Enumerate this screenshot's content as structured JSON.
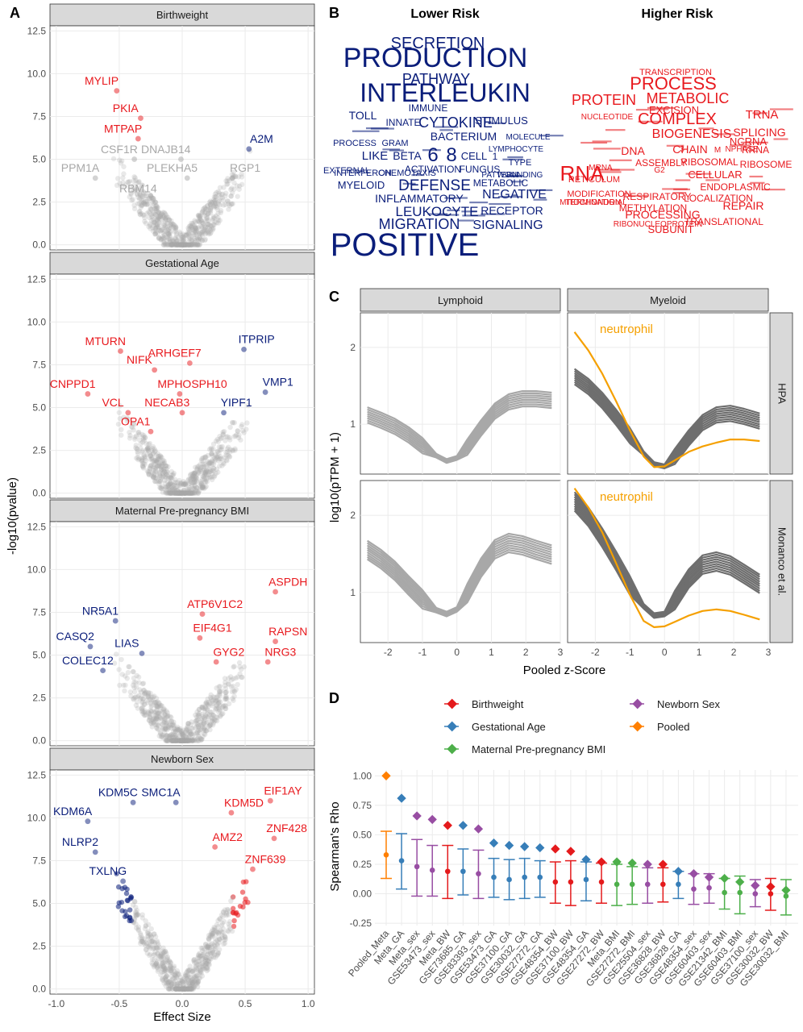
{
  "panels": {
    "a": "A",
    "b": "B",
    "c": "C",
    "d": "D"
  },
  "colors": {
    "red": "#e8191e",
    "blue": "#0a1d7a",
    "grey": "#a8a8a8",
    "orange": "#f5a000",
    "darkgrey": "#6e6e6e",
    "legend_birthweight": "#e41a1c",
    "legend_ga": "#377eb8",
    "legend_bmi": "#4daf4a",
    "legend_sex": "#984ea3",
    "legend_pooled": "#ff7f00"
  },
  "chart_data": [
    {
      "id": "A",
      "type": "scatter",
      "xlabel": "Effect Size",
      "ylabel": "-log10(pvalue)",
      "xlim": [
        -1.05,
        1.05
      ],
      "ylim": [
        -0.3,
        12.8
      ],
      "x_ticks": [
        "-1.0",
        "-0.5",
        "0.0",
        "0.5",
        "1.0"
      ],
      "y_ticks": [
        "0.0",
        "2.5",
        "5.0",
        "7.5",
        "10.0",
        "12.5"
      ],
      "grid": true,
      "facets": [
        {
          "title": "Birthweight",
          "labels": [
            {
              "text": "MYLIP",
              "x": -0.64,
              "y": 9.6,
              "color": "red"
            },
            {
              "text": "PKIA",
              "x": -0.45,
              "y": 8.0,
              "color": "red"
            },
            {
              "text": "MTPAP",
              "x": -0.47,
              "y": 6.8,
              "color": "red"
            },
            {
              "text": "CSF1R",
              "x": -0.5,
              "y": 5.6,
              "color": "grey"
            },
            {
              "text": "DNAJB14",
              "x": -0.13,
              "y": 5.6,
              "color": "grey"
            },
            {
              "text": "PPM1A",
              "x": -0.81,
              "y": 4.5,
              "color": "grey"
            },
            {
              "text": "PLEKHA5",
              "x": -0.08,
              "y": 4.5,
              "color": "grey"
            },
            {
              "text": "RBM14",
              "x": -0.35,
              "y": 3.3,
              "color": "grey"
            },
            {
              "text": "A2M",
              "x": 0.63,
              "y": 6.2,
              "color": "blue"
            },
            {
              "text": "RGP1",
              "x": 0.5,
              "y": 4.5,
              "color": "grey"
            }
          ]
        },
        {
          "title": "Gestational Age",
          "labels": [
            {
              "text": "MTURN",
              "x": -0.61,
              "y": 8.9,
              "color": "red"
            },
            {
              "text": "NIFK",
              "x": -0.34,
              "y": 7.8,
              "color": "red"
            },
            {
              "text": "ARHGEF7",
              "x": -0.06,
              "y": 8.2,
              "color": "red"
            },
            {
              "text": "CNPPD1",
              "x": -0.87,
              "y": 6.4,
              "color": "red"
            },
            {
              "text": "MPHOSPH10",
              "x": 0.08,
              "y": 6.4,
              "color": "red"
            },
            {
              "text": "VCL",
              "x": -0.55,
              "y": 5.3,
              "color": "red"
            },
            {
              "text": "NECAB3",
              "x": -0.12,
              "y": 5.3,
              "color": "red"
            },
            {
              "text": "OPA1",
              "x": -0.37,
              "y": 4.2,
              "color": "red"
            },
            {
              "text": "ITPRIP",
              "x": 0.59,
              "y": 9.0,
              "color": "blue"
            },
            {
              "text": "VMP1",
              "x": 0.76,
              "y": 6.5,
              "color": "blue"
            },
            {
              "text": "YIPF1",
              "x": 0.43,
              "y": 5.3,
              "color": "blue"
            }
          ]
        },
        {
          "title": "Maternal Pre-pregnancy BMI",
          "labels": [
            {
              "text": "NR5A1",
              "x": -0.65,
              "y": 7.6,
              "color": "blue"
            },
            {
              "text": "CASQ2",
              "x": -0.85,
              "y": 6.1,
              "color": "blue"
            },
            {
              "text": "LIAS",
              "x": -0.44,
              "y": 5.7,
              "color": "blue"
            },
            {
              "text": "COLEC12",
              "x": -0.75,
              "y": 4.7,
              "color": "blue"
            },
            {
              "text": "ASPDH",
              "x": 0.84,
              "y": 9.3,
              "color": "red"
            },
            {
              "text": "ATP6V1C2",
              "x": 0.26,
              "y": 8.0,
              "color": "red"
            },
            {
              "text": "RAPSN",
              "x": 0.84,
              "y": 6.4,
              "color": "red"
            },
            {
              "text": "EIF4G1",
              "x": 0.24,
              "y": 6.6,
              "color": "red"
            },
            {
              "text": "GYG2",
              "x": 0.37,
              "y": 5.2,
              "color": "red"
            },
            {
              "text": "NRG3",
              "x": 0.78,
              "y": 5.2,
              "color": "red"
            }
          ]
        },
        {
          "title": "Newborn Sex",
          "labels": [
            {
              "text": "KDM5C",
              "x": -0.51,
              "y": 11.5,
              "color": "blue"
            },
            {
              "text": "SMC1A",
              "x": -0.17,
              "y": 11.5,
              "color": "blue"
            },
            {
              "text": "KDM6A",
              "x": -0.87,
              "y": 10.4,
              "color": "blue"
            },
            {
              "text": "NLRP2",
              "x": -0.81,
              "y": 8.6,
              "color": "blue"
            },
            {
              "text": "TXLNG",
              "x": -0.59,
              "y": 6.9,
              "color": "blue"
            },
            {
              "text": "EIF1AY",
              "x": 0.8,
              "y": 11.6,
              "color": "red"
            },
            {
              "text": "KDM5D",
              "x": 0.49,
              "y": 10.9,
              "color": "red"
            },
            {
              "text": "AMZ2",
              "x": 0.36,
              "y": 8.9,
              "color": "red"
            },
            {
              "text": "ZNF428",
              "x": 0.83,
              "y": 9.4,
              "color": "red"
            },
            {
              "text": "ZNF639",
              "x": 0.66,
              "y": 7.6,
              "color": "red"
            }
          ]
        }
      ]
    },
    {
      "id": "B",
      "type": "wordcloud",
      "groups": [
        {
          "title": "Lower Risk",
          "color": "blue",
          "words": [
            "SECRETION",
            "PRODUCTION",
            "PATHWAY",
            "INTERLEUKIN",
            "TOLL",
            "IMMUNE",
            "CYTOKINE",
            "STIMULUS",
            "INNATE",
            "BACTERIUM",
            "PROCESS",
            "GRAM",
            "LIKE",
            "BETA",
            "6",
            "8",
            "CELL",
            "1",
            "INTERFERON",
            "ACTIVATION",
            "FUNGUS",
            "TYPE",
            "MYELOID",
            "DEFENSE",
            "NEGATIVE",
            "INFLAMMATORY",
            "METABOLIC",
            "LEUKOCYTE",
            "RECEPTOR",
            "MIGRATION",
            "SIGNALING",
            "POSITIVE",
            "CHEMOTAXIS",
            "EXTERNAL",
            "LYMPHOCYTE",
            "MOLECULE",
            "WOUNDING",
            "PATTERN"
          ]
        },
        {
          "title": "Higher Risk",
          "color": "red",
          "words": [
            "TRANSCRIPTION",
            "PROCESS",
            "METABOLIC",
            "PROTEIN",
            "NUCLEOTIDE",
            "EXCISION",
            "TRNA",
            "COMPLEX",
            "BIOGENESIS",
            "SPLICING",
            "CHAIN",
            "NCRNA",
            "DNA",
            "RNA",
            "RRNA",
            "RETICULUM",
            "RIBOSOME",
            "ASSEMBLY",
            "CELLULAR",
            "RIBOSOMAL",
            "ENDOPLASMIC",
            "MODIFICATION",
            "RESPIRATORY",
            "LOCALIZATION",
            "MITOCHONDRIAL",
            "METHYLATION",
            "TERMINATION",
            "PROCESSING",
            "TRANSLATIONAL",
            "RIBONUCLEOPROTEIN",
            "SUBUNIT",
            "REPAIR",
            "MRNA",
            "G2",
            "3",
            "M",
            "NPHASE"
          ]
        }
      ]
    },
    {
      "id": "C",
      "type": "line",
      "xlabel": "Pooled z-Score",
      "ylabel": "log10(pTPM + 1)",
      "xlim": [
        -2.8,
        3.0
      ],
      "ylim": [
        0.35,
        2.45
      ],
      "x_ticks": [
        "-2",
        "-1",
        "0",
        "1",
        "2",
        "3"
      ],
      "y_ticks": [
        "1",
        "2"
      ],
      "columns": [
        "Lymphoid",
        "Myeloid"
      ],
      "rows": [
        "HPA",
        "Monanco et al."
      ],
      "highlight_label": "neutrophil",
      "x": [
        -2.6,
        -2.2,
        -1.8,
        -1.4,
        -1.0,
        -0.6,
        -0.3,
        0.0,
        0.3,
        0.7,
        1.1,
        1.5,
        1.9,
        2.3,
        2.75
      ],
      "facets": [
        {
          "col": 0,
          "row": 0,
          "series": [
            {
              "values": [
                1.12,
                1.05,
                0.97,
                0.86,
                0.72,
                0.59,
                0.52,
                0.56,
                0.7,
                0.95,
                1.17,
                1.29,
                1.33,
                1.33,
                1.31
              ],
              "spread": 0.1,
              "n": 8,
              "color": "grey"
            }
          ]
        },
        {
          "col": 1,
          "row": 0,
          "series": [
            {
              "values": [
                1.62,
                1.49,
                1.31,
                1.09,
                0.85,
                0.62,
                0.48,
                0.45,
                0.58,
                0.82,
                1.02,
                1.12,
                1.14,
                1.1,
                1.04
              ],
              "spread": 0.1,
              "n": 8,
              "color": "darkgrey"
            },
            {
              "values": [
                2.2,
                1.96,
                1.66,
                1.3,
                0.92,
                0.58,
                0.44,
                0.45,
                0.53,
                0.64,
                0.71,
                0.76,
                0.8,
                0.8,
                0.78
              ],
              "spread": 0,
              "n": 1,
              "color": "orange"
            }
          ]
        },
        {
          "col": 0,
          "row": 1,
          "series": [
            {
              "values": [
                1.55,
                1.43,
                1.28,
                1.09,
                0.91,
                0.77,
                0.72,
                0.78,
                0.99,
                1.32,
                1.56,
                1.64,
                1.61,
                1.55,
                1.49
              ],
              "spread": 0.12,
              "n": 9,
              "color": "grey"
            }
          ]
        },
        {
          "col": 1,
          "row": 1,
          "series": [
            {
              "values": [
                2.18,
                1.98,
                1.71,
                1.41,
                1.09,
                0.82,
                0.7,
                0.72,
                0.9,
                1.18,
                1.36,
                1.4,
                1.35,
                1.24,
                1.11
              ],
              "spread": 0.12,
              "n": 9,
              "color": "darkgrey"
            },
            {
              "values": [
                2.35,
                2.1,
                1.78,
                1.38,
                0.97,
                0.63,
                0.55,
                0.56,
                0.62,
                0.7,
                0.76,
                0.78,
                0.76,
                0.71,
                0.65
              ],
              "spread": 0,
              "n": 1,
              "color": "orange"
            }
          ]
        }
      ]
    },
    {
      "id": "D",
      "type": "scatter",
      "ylabel": "Spearman's Rho",
      "ylim": [
        -0.27,
        1.05
      ],
      "y_ticks": [
        "-0.25",
        "0.00",
        "0.25",
        "0.50",
        "0.75",
        "1.00"
      ],
      "legend": [
        {
          "name": "Birthweight",
          "color": "legend_birthweight"
        },
        {
          "name": "Gestational Age",
          "color": "legend_ga"
        },
        {
          "name": "Maternal Pre-pregnancy BMI",
          "color": "legend_bmi"
        },
        {
          "name": "Newborn Sex",
          "color": "legend_sex"
        },
        {
          "name": "Pooled",
          "color": "legend_pooled"
        }
      ],
      "categories": [
        "Pooled_Meta",
        "Meta_GA",
        "Meta_sex",
        "GSE53473_sex",
        "Meta_BW",
        "GSE73685_GA",
        "GSE83393_sex",
        "GSE53473_GA",
        "GSE37100_GA",
        "GSE30032_GA",
        "GSE27272_GA",
        "GSE48354_BW",
        "GSE37100_BW",
        "GSE48354_GA",
        "GSE27272_BW",
        "Meta_BMI",
        "GSE27272_BMI",
        "GSE25504_sex",
        "GSE36828_BW",
        "GSE36828_GA",
        "GSE48354_sex",
        "GSE60403_sex",
        "GSE21342_BMI",
        "GSE60403_BMI",
        "GSE37100_sex",
        "GSE30032_BW",
        "GSE30032_BMI"
      ],
      "group": [
        "pooled",
        "ga",
        "sex",
        "sex",
        "bw",
        "ga",
        "sex",
        "ga",
        "ga",
        "ga",
        "ga",
        "bw",
        "bw",
        "ga",
        "bw",
        "bmi",
        "bmi",
        "sex",
        "bw",
        "ga",
        "sex",
        "sex",
        "bmi",
        "bmi",
        "sex",
        "bw",
        "bmi"
      ],
      "diamond": [
        1.0,
        0.81,
        0.66,
        0.63,
        0.58,
        0.58,
        0.55,
        0.43,
        0.41,
        0.4,
        0.39,
        0.38,
        0.36,
        0.29,
        0.27,
        0.27,
        0.26,
        0.25,
        0.25,
        0.19,
        0.17,
        0.14,
        0.13,
        0.1,
        0.07,
        0.06,
        0.03
      ],
      "point": [
        0.33,
        0.28,
        0.23,
        0.2,
        0.19,
        0.19,
        0.17,
        0.14,
        0.12,
        0.14,
        0.14,
        0.1,
        0.1,
        0.12,
        0.1,
        0.08,
        0.08,
        0.08,
        0.08,
        0.08,
        0.04,
        0.05,
        0.01,
        0.01,
        0.0,
        0.0,
        -0.02
      ],
      "lower": [
        0.13,
        0.04,
        -0.02,
        -0.02,
        -0.04,
        -0.01,
        -0.04,
        -0.03,
        -0.05,
        -0.04,
        -0.03,
        -0.08,
        -0.1,
        -0.06,
        -0.08,
        -0.1,
        -0.09,
        -0.08,
        -0.07,
        -0.04,
        -0.09,
        -0.08,
        -0.13,
        -0.17,
        -0.11,
        -0.14,
        -0.18
      ],
      "upper": [
        0.53,
        0.51,
        0.46,
        0.41,
        0.41,
        0.38,
        0.37,
        0.3,
        0.29,
        0.3,
        0.28,
        0.27,
        0.28,
        0.27,
        0.26,
        0.25,
        0.23,
        0.22,
        0.22,
        0.19,
        0.17,
        0.17,
        0.13,
        0.15,
        0.12,
        0.13,
        0.12
      ]
    }
  ]
}
